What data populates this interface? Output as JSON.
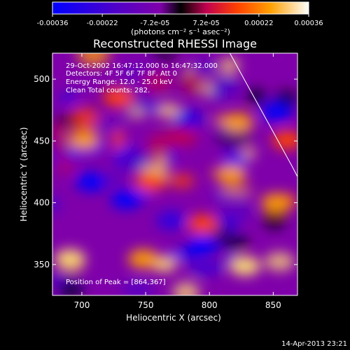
{
  "chart_data": {
    "type": "heatmap",
    "title": "Reconstructed RHESSI Image",
    "xlabel": "Heliocentric X (arcsec)",
    "ylabel": "Heliocentric Y (arcsec)",
    "xlim": [
      677,
      869
    ],
    "ylim": [
      325,
      521
    ],
    "x_ticks": [
      700,
      750,
      800,
      850
    ],
    "y_ticks": [
      350,
      400,
      450,
      500
    ],
    "colorbar": {
      "label": "(photons cm⁻² s⁻¹ asec⁻²)",
      "range": [
        -0.00036,
        0.00036
      ],
      "ticks": [
        "-0.00036",
        "-0.00022",
        "-7.2e-05",
        "7.2e-05",
        "0.00022",
        "0.00036"
      ],
      "tick_values": [
        -0.00036,
        -0.00022,
        -7.2e-05,
        7.2e-05,
        0.00022,
        0.00036
      ]
    },
    "annotations": [
      "29-Oct-2002 16:47:12.000 to 16:47:32.000",
      "Detectors: 4F 5F 6F 7F 8F, Att 0",
      "Energy Range: 12.0 - 25.0 keV",
      "Clean    Total counts: 282.",
      "Position of Peak = [864,367]"
    ],
    "peak": {
      "x": 864,
      "y": 367
    },
    "limb_line": [
      [
        816,
        521
      ],
      [
        865,
        429
      ],
      [
        869,
        421
      ]
    ],
    "footer": "14-Apr-2013 23:21"
  },
  "colors": {
    "background": "#000000",
    "text": "#ffffff",
    "colormap": [
      "#0000ff",
      "#5000c8",
      "#7f00aa",
      "#c00050",
      "#ff4000",
      "#ffa000",
      "#ffff80",
      "#ffffff"
    ]
  }
}
